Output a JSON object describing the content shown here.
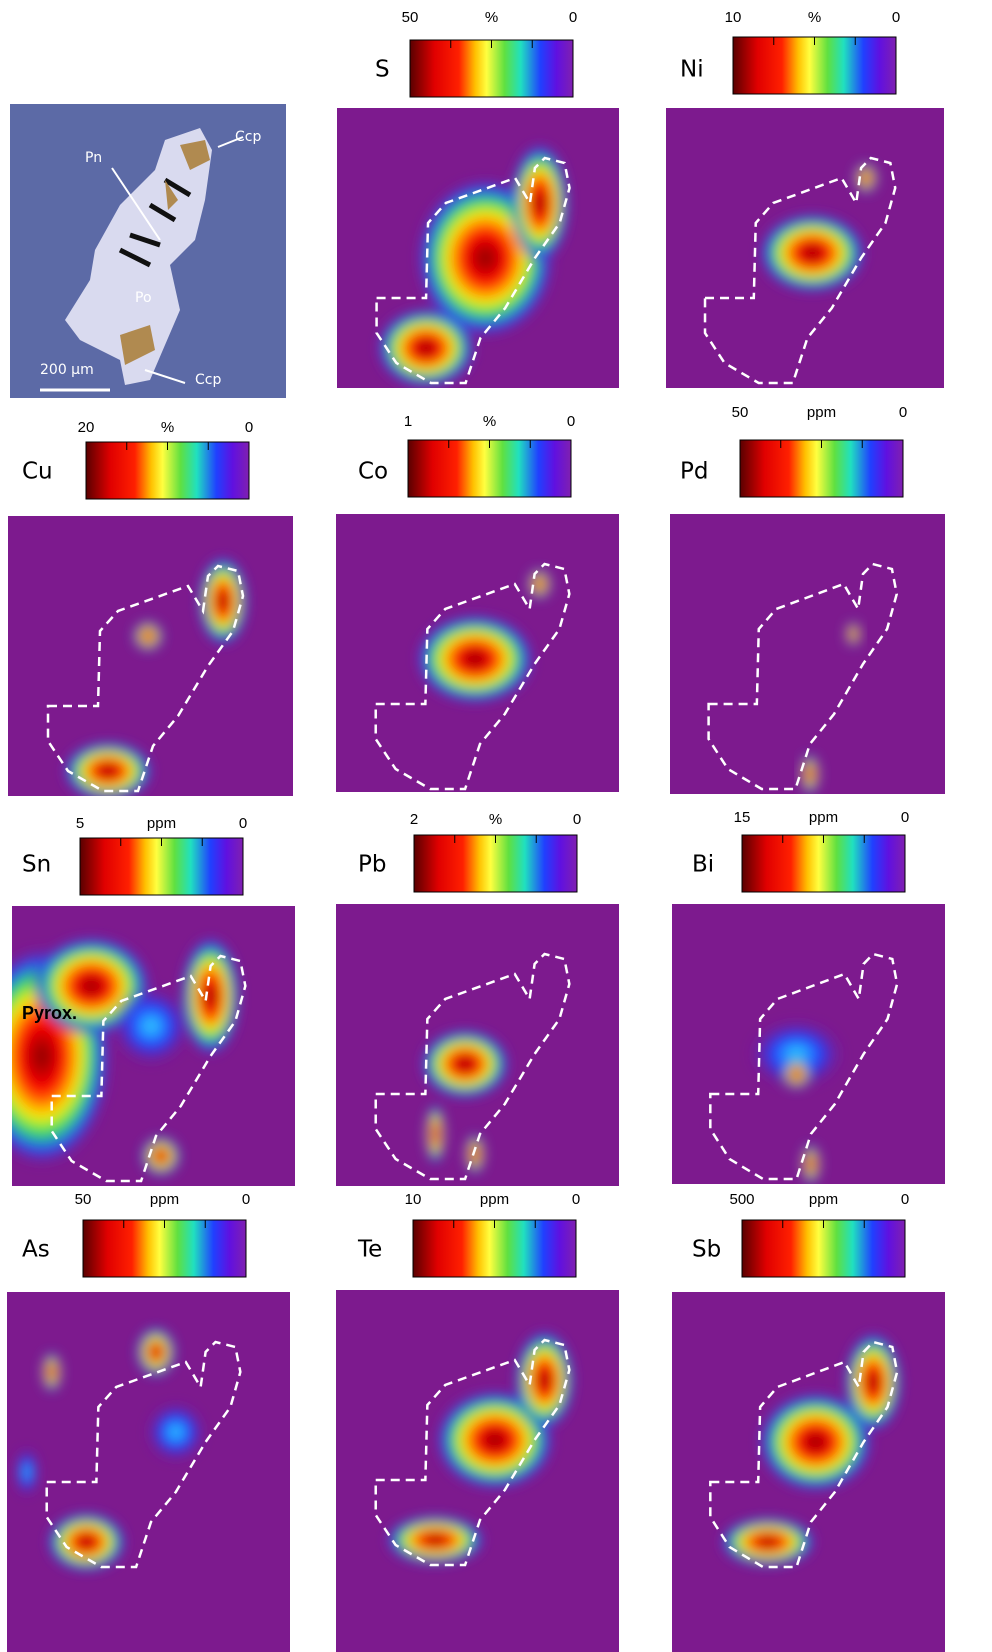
{
  "micrograph": {
    "labels": [
      "Ccp",
      "Pn",
      "Po",
      "Ccp"
    ],
    "scale_bar": "200 µm"
  },
  "panels": [
    {
      "element": "S",
      "scale_max": 50,
      "unit": "%",
      "scale_min": 0
    },
    {
      "element": "Ni",
      "scale_max": 10,
      "unit": "%",
      "scale_min": 0
    },
    {
      "element": "Cu",
      "scale_max": 20,
      "unit": "%",
      "scale_min": 0
    },
    {
      "element": "Co",
      "scale_max": 1,
      "unit": "%",
      "scale_min": 0
    },
    {
      "element": "Pd",
      "scale_max": 50,
      "unit": "ppm",
      "scale_min": 0
    },
    {
      "element": "Sn",
      "scale_max": 5,
      "unit": "ppm",
      "scale_min": 0
    },
    {
      "element": "Pb",
      "scale_max": 2,
      "unit": "%",
      "scale_min": 0
    },
    {
      "element": "Bi",
      "scale_max": 15,
      "unit": "ppm",
      "scale_min": 0
    },
    {
      "element": "As",
      "scale_max": 50,
      "unit": "ppm",
      "scale_min": 0
    },
    {
      "element": "Te",
      "scale_max": 10,
      "unit": "ppm",
      "scale_min": 0
    },
    {
      "element": "Sb",
      "scale_max": 500,
      "unit": "ppm",
      "scale_min": 0
    }
  ],
  "annotations": {
    "sn_map": "Pyrox."
  }
}
